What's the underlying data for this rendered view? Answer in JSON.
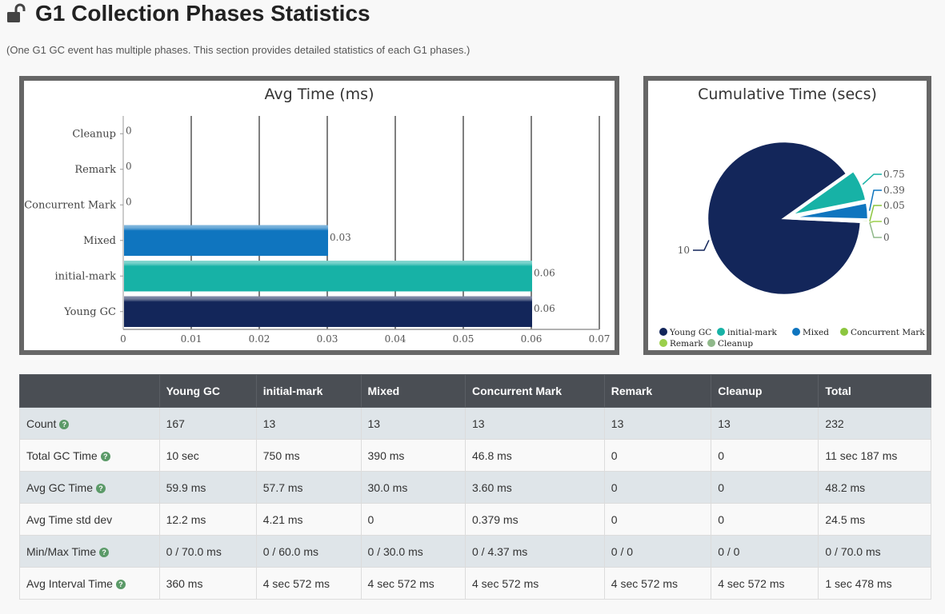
{
  "page": {
    "title": "G1 Collection Phases Statistics",
    "subtitle": "(One G1 GC event has multiple phases. This section provides detailed statistics of each G1 phases.)",
    "lock_icon": "unlocked-padlock-icon"
  },
  "colors": {
    "Young GC": "#13265a",
    "initial-mark": "#17b2a6",
    "Mixed": "#0f75bf",
    "Concurrent Mark": "#8cc63f",
    "Remark": "#9bcf4c",
    "Cleanup": "#8fb88a"
  },
  "chart_data": [
    {
      "type": "bar",
      "orientation": "horizontal",
      "title": "Avg Time (ms)",
      "categories": [
        "Young GC",
        "initial-mark",
        "Mixed",
        "Concurrent Mark",
        "Remark",
        "Cleanup"
      ],
      "values": [
        0.06,
        0.06,
        0.03,
        0,
        0,
        0
      ],
      "value_labels": [
        "0.06",
        "0.06",
        "0.03",
        "0",
        "0",
        "0"
      ],
      "xlim": [
        0,
        0.07
      ],
      "xticks": [
        "0",
        "0.01",
        "0.02",
        "0.03",
        "0.04",
        "0.05",
        "0.06",
        "0.07"
      ],
      "grid": true
    },
    {
      "type": "pie",
      "title": "Cumulative Time (secs)",
      "labels": [
        "Young GC",
        "initial-mark",
        "Mixed",
        "Concurrent Mark",
        "Remark",
        "Cleanup"
      ],
      "values": [
        10,
        0.75,
        0.39,
        0.05,
        0,
        0
      ],
      "value_labels": [
        "10",
        "0.75",
        "0.39",
        "0.05",
        "0",
        "0"
      ],
      "legend": "bottom"
    }
  ],
  "table": {
    "headers": [
      "",
      "Young GC",
      "initial-mark",
      "Mixed",
      "Concurrent Mark",
      "Remark",
      "Cleanup",
      "Total"
    ],
    "rows": [
      {
        "label": "Count",
        "help": true,
        "values": [
          "167",
          "13",
          "13",
          "13",
          "13",
          "13",
          "232"
        ]
      },
      {
        "label": "Total GC Time",
        "help": true,
        "values": [
          "10 sec",
          "750 ms",
          "390 ms",
          "46.8 ms",
          "0",
          "0",
          "11 sec 187 ms"
        ]
      },
      {
        "label": "Avg GC Time",
        "help": true,
        "values": [
          "59.9 ms",
          "57.7 ms",
          "30.0 ms",
          "3.60 ms",
          "0",
          "0",
          "48.2 ms"
        ]
      },
      {
        "label": "Avg Time std dev",
        "help": false,
        "values": [
          "12.2 ms",
          "4.21 ms",
          "0",
          "0.379 ms",
          "0",
          "0",
          "24.5 ms"
        ]
      },
      {
        "label": "Min/Max Time",
        "help": true,
        "values": [
          "0 / 70.0 ms",
          "0 / 60.0 ms",
          "0 / 30.0 ms",
          "0 / 4.37 ms",
          "0 / 0",
          "0 / 0",
          "0 / 70.0 ms"
        ]
      },
      {
        "label": "Avg Interval Time",
        "help": true,
        "values": [
          "360 ms",
          "4 sec 572 ms",
          "4 sec 572 ms",
          "4 sec 572 ms",
          "4 sec 572 ms",
          "4 sec 572 ms",
          "1 sec 478 ms"
        ]
      }
    ]
  }
}
